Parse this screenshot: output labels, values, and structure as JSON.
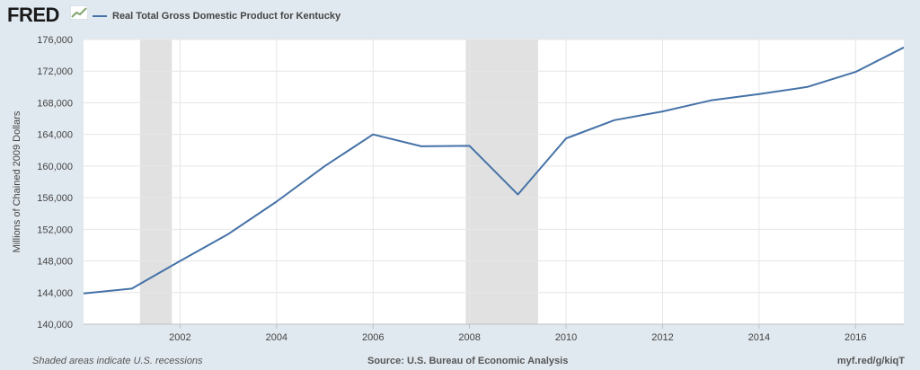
{
  "header": {
    "logo_text": "FRED",
    "logo_icon": "trend-chart-icon",
    "legend_color": "#4572a7"
  },
  "footer": {
    "recession_note": "Shaded areas indicate U.S. recessions",
    "source": "Source: U.S. Bureau of Economic Analysis",
    "url": "myf.red/g/kiqT"
  },
  "chart_data": {
    "type": "line",
    "title": "",
    "xlabel": "",
    "ylabel": "Millions of Chained 2009 Dollars",
    "xlim": [
      2000,
      2017
    ],
    "ylim": [
      140000,
      176000
    ],
    "x_ticks": [
      2002,
      2004,
      2006,
      2008,
      2010,
      2012,
      2014,
      2016
    ],
    "x_tick_labels": [
      "2002",
      "2004",
      "2006",
      "2008",
      "2010",
      "2012",
      "2014",
      "2016"
    ],
    "y_ticks": [
      140000,
      144000,
      148000,
      152000,
      156000,
      160000,
      164000,
      168000,
      172000,
      176000
    ],
    "y_tick_labels": [
      "140,000",
      "144,000",
      "148,000",
      "152,000",
      "156,000",
      "160,000",
      "164,000",
      "168,000",
      "172,000",
      "176,000"
    ],
    "grid": true,
    "legend_position": "top-left",
    "recessions": [
      {
        "start": 2001.17,
        "end": 2001.83
      },
      {
        "start": 2007.92,
        "end": 2009.42
      }
    ],
    "recession_color": "#e1e1e1",
    "series": [
      {
        "name": "Real Total Gross Domestic Product for Kentucky",
        "color": "#4572a7",
        "x": [
          2000,
          2001,
          2002,
          2003,
          2004,
          2005,
          2006,
          2007,
          2008,
          2009,
          2010,
          2011,
          2012,
          2013,
          2014,
          2015,
          2016,
          2017
        ],
        "values": [
          143900,
          144500,
          148000,
          151400,
          155500,
          160000,
          164000,
          162500,
          162550,
          156400,
          163500,
          165800,
          166900,
          168300,
          169100,
          170000,
          171900,
          175000
        ]
      }
    ]
  }
}
